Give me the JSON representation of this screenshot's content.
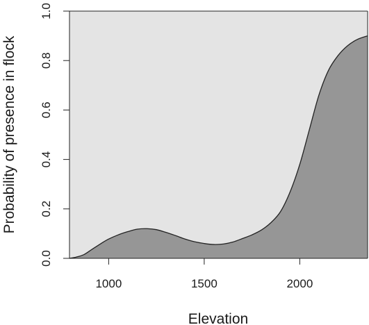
{
  "chart_data": {
    "type": "area",
    "title": "",
    "xlabel": "Elevation",
    "ylabel": "Probability of presence in flock",
    "xlim": [
      795,
      2355
    ],
    "ylim": [
      0,
      1
    ],
    "x_ticks": [
      1000,
      1500,
      2000
    ],
    "y_ticks": [
      "0.0",
      "0.2",
      "0.4",
      "0.6",
      "0.8",
      "1.0"
    ],
    "grid": false,
    "legend": "none",
    "colors": {
      "background_fill": "#e4e4e4",
      "area_fill": "#969696",
      "line": "#222222",
      "axis": "#222222"
    },
    "series": [
      {
        "x": [
          795,
          830,
          870,
          910,
          960,
          1000,
          1050,
          1100,
          1150,
          1200,
          1250,
          1300,
          1350,
          1400,
          1450,
          1500,
          1550,
          1600,
          1650,
          1700,
          1750,
          1800,
          1850,
          1900,
          1950,
          2000,
          2050,
          2100,
          2150,
          2200,
          2250,
          2300,
          2355
        ],
        "y": [
          0.0,
          0.005,
          0.015,
          0.035,
          0.06,
          0.078,
          0.095,
          0.108,
          0.118,
          0.12,
          0.116,
          0.105,
          0.092,
          0.078,
          0.067,
          0.06,
          0.056,
          0.058,
          0.066,
          0.08,
          0.095,
          0.115,
          0.145,
          0.19,
          0.27,
          0.38,
          0.52,
          0.66,
          0.76,
          0.82,
          0.86,
          0.885,
          0.9
        ]
      }
    ]
  }
}
